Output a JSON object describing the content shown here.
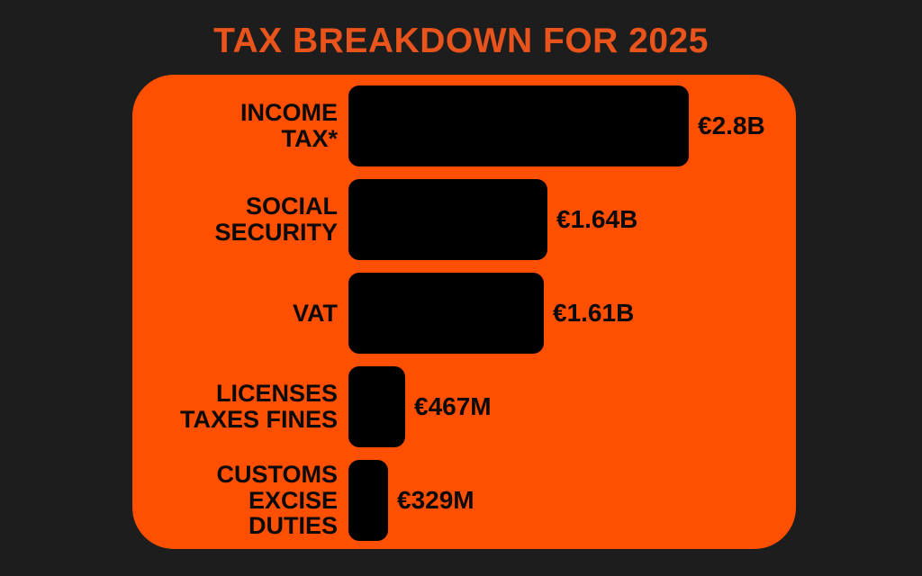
{
  "title": "TAX BREAKDOWN FOR 2025",
  "colors": {
    "background": "#1d1d1d",
    "panel": "#ff4f00",
    "bar": "#000000",
    "title_text": "#e9541c",
    "label_text": "#0a0a0a"
  },
  "chart_data": {
    "type": "bar",
    "orientation": "horizontal",
    "title": "TAX BREAKDOWN FOR 2025",
    "unit": "EUR",
    "legend": false,
    "gridlines": false,
    "axes_shown": false,
    "categories": [
      "INCOME TAX*",
      "SOCIAL SECURITY",
      "VAT",
      "LICENSES TAXES FINES",
      "CUSTOMS EXCISE DUTIES"
    ],
    "values_millions_eur": [
      2800,
      1640,
      1610,
      467,
      329
    ],
    "value_labels": [
      "€2.8B",
      "€1.64B",
      "€1.61B",
      "€467M",
      "€329M"
    ],
    "max_value_millions": 2800,
    "rows": [
      {
        "label_lines": [
          "INCOME",
          "TAX*"
        ],
        "value_millions": 2800,
        "value_label": "€2.8B"
      },
      {
        "label_lines": [
          "SOCIAL",
          "SECURITY"
        ],
        "value_millions": 1640,
        "value_label": "€1.64B"
      },
      {
        "label_lines": [
          "VAT"
        ],
        "value_millions": 1610,
        "value_label": "€1.61B"
      },
      {
        "label_lines": [
          "LICENSES",
          "TAXES FINES"
        ],
        "value_millions": 467,
        "value_label": "€467M"
      },
      {
        "label_lines": [
          "CUSTOMS",
          "EXCISE",
          "DUTIES"
        ],
        "value_millions": 329,
        "value_label": "€329M"
      }
    ]
  }
}
